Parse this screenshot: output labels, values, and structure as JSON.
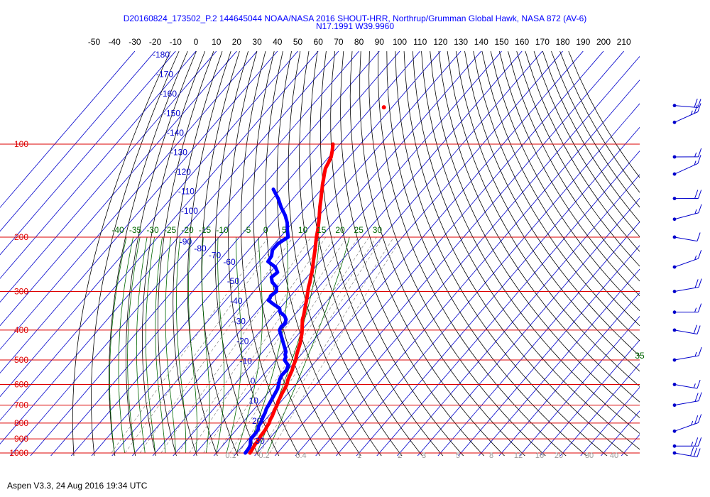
{
  "header": {
    "title": "D20160824_173502_P.2 144645044 NOAA/NASA 2016 SHOUT-HRR, Northrup/Grumman Global Hawk, NASA 872 (AV-6)",
    "subtitle": "N17.1991 W39.9960"
  },
  "footer": {
    "text": "Aspen V3.3, 24 Aug 2016  19:34 UTC"
  },
  "chart_data": {
    "type": "line",
    "title": "D20160824_173502_P.2 144645044 NOAA/NASA 2016 SHOUT-HRR, Northrup/Grumman Global Hawk, NASA 872 (AV-6)",
    "subtitle": "N17.1991 W39.9960",
    "y_scale": "log",
    "pressure_ticks": [
      "100",
      "200",
      "300",
      "400",
      "500",
      "600",
      "700",
      "800",
      "900",
      "1000"
    ],
    "pressure_values": [
      100,
      200,
      300,
      400,
      500,
      600,
      700,
      800,
      900,
      1000
    ],
    "temperature_ticks": [
      "-50",
      "-40",
      "-30",
      "-20",
      "-10",
      "0",
      "10",
      "20",
      "30",
      "40",
      "50",
      "60",
      "70",
      "80",
      "90",
      "100",
      "110",
      "120",
      "130",
      "140",
      "150",
      "160",
      "170",
      "180",
      "190",
      "200",
      "210"
    ],
    "temperature_values": [
      -50,
      -40,
      -30,
      -20,
      -10,
      0,
      10,
      20,
      30,
      40,
      50,
      60,
      70,
      80,
      90,
      100,
      110,
      120,
      130,
      140,
      150,
      160,
      170,
      180,
      190,
      200,
      210
    ],
    "isotherm_labels": [
      "-180",
      "-170",
      "-160",
      "-150",
      "-140",
      "-130",
      "-120",
      "-110",
      "-100",
      "-90",
      "-80",
      "-70",
      "-60",
      "-50",
      "-40",
      "-30",
      "-20",
      "-10",
      "0",
      "10",
      "20",
      "30"
    ],
    "isotherm_values": [
      -180,
      -170,
      -160,
      -150,
      -140,
      -130,
      -120,
      -110,
      -100,
      -90,
      -80,
      -70,
      -60,
      -50,
      -40,
      -30,
      -20,
      -10,
      0,
      10,
      20,
      30
    ],
    "moist_adiabat_labels": [
      "-40",
      "-35",
      "-30",
      "-25",
      "-20",
      "-15",
      "-10",
      "-5",
      "0",
      "5",
      "10",
      "15",
      "20",
      "25",
      "30",
      "35"
    ],
    "moist_adiabat_values": [
      -40,
      -35,
      -30,
      -25,
      -20,
      -15,
      -10,
      -5,
      0,
      5,
      10,
      15,
      20,
      25,
      30,
      35
    ],
    "mixing_ratio_labels": [
      "0.1",
      "0.2",
      "0.4",
      "1",
      "2",
      "3",
      "5",
      "8",
      "12",
      "16",
      "20",
      "30",
      "40"
    ],
    "mixing_ratio_values": [
      0.1,
      0.2,
      0.4,
      1,
      2,
      3,
      5,
      8,
      12,
      16,
      20,
      30,
      40
    ],
    "series": [
      {
        "id": "temperature",
        "color": "#ff0000",
        "points": [
          [
            1000,
            26.5
          ],
          [
            980,
            26.2
          ],
          [
            960,
            25.8
          ],
          [
            940,
            25.4
          ],
          [
            920,
            25.3
          ],
          [
            900,
            25.0
          ],
          [
            880,
            24.6
          ],
          [
            860,
            24.4
          ],
          [
            840,
            24.2
          ],
          [
            820,
            23.6
          ],
          [
            800,
            23.3
          ],
          [
            780,
            22.3
          ],
          [
            760,
            21.8
          ],
          [
            740,
            21.0
          ],
          [
            720,
            20.2
          ],
          [
            700,
            19.6
          ],
          [
            680,
            18.5
          ],
          [
            660,
            17.8
          ],
          [
            640,
            17.0
          ],
          [
            620,
            16.4
          ],
          [
            600,
            15.6
          ],
          [
            580,
            14.2
          ],
          [
            560,
            13.2
          ],
          [
            540,
            12.2
          ],
          [
            520,
            10.8
          ],
          [
            500,
            9.6
          ],
          [
            480,
            7.8
          ],
          [
            460,
            6.2
          ],
          [
            440,
            4.6
          ],
          [
            410,
            1.4
          ],
          [
            400,
            0.1
          ],
          [
            380,
            -2.7
          ],
          [
            370,
            -4.2
          ],
          [
            360,
            -5.2
          ],
          [
            350,
            -6.4
          ],
          [
            340,
            -7.7
          ],
          [
            320,
            -10.4
          ],
          [
            300,
            -13.4
          ],
          [
            290,
            -15.0
          ],
          [
            280,
            -16.3
          ],
          [
            270,
            -18.0
          ],
          [
            260,
            -19.5
          ],
          [
            250,
            -21.4
          ],
          [
            240,
            -23.4
          ],
          [
            230,
            -25.4
          ],
          [
            220,
            -27.5
          ],
          [
            210,
            -29.8
          ],
          [
            200,
            -32.2
          ],
          [
            190,
            -34.5
          ],
          [
            180,
            -37.1
          ],
          [
            170,
            -40.0
          ],
          [
            160,
            -43.2
          ],
          [
            150,
            -46.3
          ],
          [
            145,
            -48.0
          ],
          [
            140,
            -49.7
          ],
          [
            135,
            -51.5
          ],
          [
            130,
            -53.2
          ],
          [
            125,
            -55.0
          ],
          [
            120,
            -56.8
          ],
          [
            115,
            -57.8
          ],
          [
            110,
            -58.9
          ],
          [
            105,
            -61.0
          ],
          [
            100,
            -63.4
          ]
        ]
      },
      {
        "id": "dewpoint",
        "color": "#0000ff",
        "points": [
          [
            1000,
            24.2
          ],
          [
            980,
            24.1
          ],
          [
            960,
            23.8
          ],
          [
            940,
            23.2
          ],
          [
            920,
            22.0
          ],
          [
            900,
            21.0
          ],
          [
            880,
            21.0
          ],
          [
            860,
            20.9
          ],
          [
            840,
            20.6
          ],
          [
            820,
            19.4
          ],
          [
            800,
            19.0
          ],
          [
            780,
            18.3
          ],
          [
            760,
            17.5
          ],
          [
            740,
            16.9
          ],
          [
            720,
            15.9
          ],
          [
            700,
            15.4
          ],
          [
            680,
            14.8
          ],
          [
            660,
            14.2
          ],
          [
            640,
            13.6
          ],
          [
            620,
            12.9
          ],
          [
            600,
            11.6
          ],
          [
            580,
            10.1
          ],
          [
            560,
            9.2
          ],
          [
            540,
            9.4
          ],
          [
            520,
            8.2
          ],
          [
            500,
            4.1
          ],
          [
            490,
            3.6
          ],
          [
            480,
            2.1
          ],
          [
            470,
            1.3
          ],
          [
            400,
            -11.0
          ],
          [
            390,
            -11.6
          ],
          [
            380,
            -11.2
          ],
          [
            370,
            -12.2
          ],
          [
            360,
            -14.5
          ],
          [
            350,
            -18.3
          ],
          [
            340,
            -20.2
          ],
          [
            330,
            -24.8
          ],
          [
            320,
            -29.2
          ],
          [
            315,
            -29.2
          ],
          [
            310,
            -29.8
          ],
          [
            300,
            -28.8
          ],
          [
            290,
            -30.8
          ],
          [
            280,
            -34.8
          ],
          [
            270,
            -37.3
          ],
          [
            260,
            -36.4
          ],
          [
            250,
            -39.7
          ],
          [
            240,
            -45.6
          ],
          [
            230,
            -46.3
          ],
          [
            220,
            -48.4
          ],
          [
            210,
            -48.3
          ],
          [
            200,
            -46.1
          ],
          [
            190,
            -49.4
          ],
          [
            180,
            -52.5
          ],
          [
            170,
            -56.8
          ],
          [
            160,
            -62.2
          ],
          [
            150,
            -67.3
          ],
          [
            140,
            -73.6
          ]
        ]
      }
    ],
    "stray_point": {
      "pressure": 76,
      "temperature": -54
    },
    "wind_barbs": [
      {
        "pressure": 1000,
        "speed_kt": 30
      },
      {
        "pressure": 950,
        "speed_kt": 25
      },
      {
        "pressure": 850,
        "speed_kt": 25
      },
      {
        "pressure": 700,
        "speed_kt": 20
      },
      {
        "pressure": 600,
        "speed_kt": 15
      },
      {
        "pressure": 500,
        "speed_kt": 15
      },
      {
        "pressure": 400,
        "speed_kt": 20
      },
      {
        "pressure": 350,
        "speed_kt": 15
      },
      {
        "pressure": 300,
        "speed_kt": 20
      },
      {
        "pressure": 250,
        "speed_kt": 15
      },
      {
        "pressure": 200,
        "speed_kt": 10
      },
      {
        "pressure": 175,
        "speed_kt": 15
      },
      {
        "pressure": 150,
        "speed_kt": 20
      },
      {
        "pressure": 125,
        "speed_kt": 15
      },
      {
        "pressure": 110,
        "speed_kt": 15
      },
      {
        "pressure": 85,
        "speed_kt": 25
      },
      {
        "pressure": 75,
        "speed_kt": 20
      }
    ],
    "colors": {
      "isobar": "#dd0000",
      "isobar_label": "#dd0000",
      "isotherm": "#0000cc",
      "isotherm_label": "#0000cc",
      "dry_adiabat": "#000000",
      "moist_adiabat": "#006600",
      "mixing_ratio": "#888888",
      "wind_barb": "#0000cc"
    }
  }
}
